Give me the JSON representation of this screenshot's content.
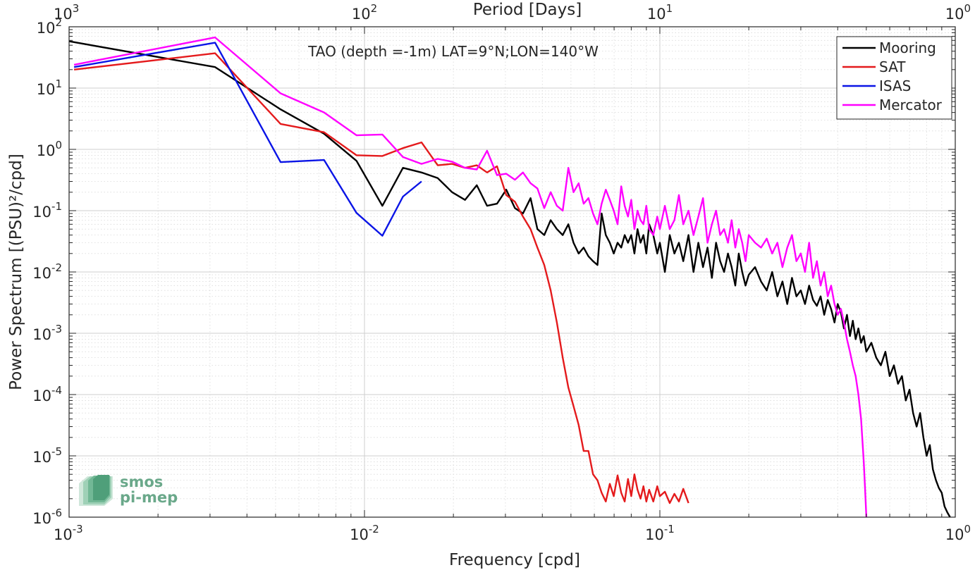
{
  "chart_data": {
    "type": "line",
    "title": "TAO (depth =-1m) LAT=9°N;LON=140°W",
    "xlabel": "Frequency [cpd]",
    "ylabel": "Power Spectrum [(PSU)²/cpd]",
    "x2label": "Period [Days]",
    "xscale": "log",
    "yscale": "log",
    "xlim": [
      0.001,
      1
    ],
    "ylim": [
      1e-06,
      100
    ],
    "grid": true,
    "legend_position": "top-right",
    "x_ticks": [
      {
        "value": 0.001,
        "base": "10",
        "exp": "-3"
      },
      {
        "value": 0.01,
        "base": "10",
        "exp": "-2"
      },
      {
        "value": 0.1,
        "base": "10",
        "exp": "-1"
      },
      {
        "value": 1,
        "base": "10",
        "exp": "0"
      }
    ],
    "x2_ticks": [
      {
        "value": 0.001,
        "base": "10",
        "exp": "3"
      },
      {
        "value": 0.01,
        "base": "10",
        "exp": "2"
      },
      {
        "value": 0.1,
        "base": "10",
        "exp": "1"
      },
      {
        "value": 1,
        "base": "10",
        "exp": "0"
      }
    ],
    "y_ticks": [
      {
        "value": 100,
        "base": "10",
        "exp": "2"
      },
      {
        "value": 10,
        "base": "10",
        "exp": "1"
      },
      {
        "value": 1,
        "base": "10",
        "exp": "0"
      },
      {
        "value": 0.1,
        "base": "10",
        "exp": "-1"
      },
      {
        "value": 0.01,
        "base": "10",
        "exp": "-2"
      },
      {
        "value": 0.001,
        "base": "10",
        "exp": "-3"
      },
      {
        "value": 0.0001,
        "base": "10",
        "exp": "-4"
      },
      {
        "value": 1e-05,
        "base": "10",
        "exp": "-5"
      },
      {
        "value": 1e-06,
        "base": "10",
        "exp": "-6"
      }
    ],
    "series": [
      {
        "name": "Mooring",
        "color": "#000000",
        "x": [
          0.001,
          0.00312,
          0.0052,
          0.0073,
          0.0094,
          0.0115,
          0.0135,
          0.0156,
          0.0177,
          0.0198,
          0.0219,
          0.024,
          0.026,
          0.0281,
          0.0302,
          0.0323,
          0.0344,
          0.0365,
          0.0385,
          0.0406,
          0.0427,
          0.0448,
          0.0469,
          0.049,
          0.051,
          0.0531,
          0.0552,
          0.0573,
          0.0594,
          0.0615,
          0.0635,
          0.0656,
          0.0677,
          0.0698,
          0.0719,
          0.074,
          0.076,
          0.078,
          0.08,
          0.082,
          0.084,
          0.086,
          0.088,
          0.09,
          0.092,
          0.095,
          0.098,
          0.1,
          0.104,
          0.108,
          0.112,
          0.116,
          0.12,
          0.125,
          0.13,
          0.135,
          0.14,
          0.145,
          0.15,
          0.155,
          0.16,
          0.165,
          0.17,
          0.175,
          0.18,
          0.185,
          0.19,
          0.195,
          0.2,
          0.21,
          0.22,
          0.23,
          0.24,
          0.25,
          0.26,
          0.27,
          0.28,
          0.29,
          0.3,
          0.31,
          0.32,
          0.33,
          0.34,
          0.35,
          0.36,
          0.37,
          0.38,
          0.39,
          0.4,
          0.41,
          0.42,
          0.43,
          0.44,
          0.45,
          0.46,
          0.47,
          0.48,
          0.49,
          0.5,
          0.52,
          0.54,
          0.56,
          0.58,
          0.6,
          0.62,
          0.64,
          0.66,
          0.68,
          0.7,
          0.72,
          0.74,
          0.76,
          0.78,
          0.8,
          0.82,
          0.84,
          0.86,
          0.88,
          0.9,
          0.92,
          0.94,
          0.96
        ],
        "values": [
          58,
          22,
          4.5,
          1.8,
          0.65,
          0.12,
          0.5,
          0.42,
          0.34,
          0.2,
          0.15,
          0.26,
          0.12,
          0.13,
          0.22,
          0.11,
          0.09,
          0.16,
          0.05,
          0.04,
          0.07,
          0.05,
          0.04,
          0.06,
          0.03,
          0.02,
          0.025,
          0.018,
          0.015,
          0.013,
          0.09,
          0.04,
          0.03,
          0.02,
          0.03,
          0.025,
          0.04,
          0.03,
          0.04,
          0.02,
          0.05,
          0.03,
          0.04,
          0.02,
          0.06,
          0.04,
          0.02,
          0.03,
          0.01,
          0.04,
          0.02,
          0.03,
          0.015,
          0.04,
          0.01,
          0.03,
          0.012,
          0.025,
          0.008,
          0.03,
          0.015,
          0.01,
          0.02,
          0.012,
          0.006,
          0.02,
          0.01,
          0.006,
          0.009,
          0.012,
          0.007,
          0.005,
          0.01,
          0.004,
          0.007,
          0.003,
          0.008,
          0.004,
          0.005,
          0.003,
          0.006,
          0.0035,
          0.0028,
          0.004,
          0.002,
          0.0035,
          0.0025,
          0.0015,
          0.003,
          0.0022,
          0.0012,
          0.002,
          0.0009,
          0.0016,
          0.0008,
          0.0012,
          0.0007,
          0.0009,
          0.0005,
          0.0007,
          0.0004,
          0.0003,
          0.0005,
          0.0002,
          0.0003,
          0.00015,
          0.0002,
          8e-05,
          0.00012,
          5e-05,
          3e-05,
          5e-05,
          2e-05,
          1e-05,
          1.5e-05,
          6e-06,
          4e-06,
          3e-06,
          2.5e-06,
          1.5e-06,
          1.2e-06,
          1e-06
        ]
      },
      {
        "name": "SAT",
        "color": "#e41a1c",
        "x": [
          0.00104,
          0.00312,
          0.0052,
          0.0073,
          0.0094,
          0.0115,
          0.0135,
          0.0156,
          0.0177,
          0.0198,
          0.0219,
          0.024,
          0.026,
          0.0281,
          0.0302,
          0.0323,
          0.0344,
          0.0365,
          0.0385,
          0.0406,
          0.0427,
          0.0448,
          0.0469,
          0.049,
          0.051,
          0.0531,
          0.0552,
          0.0573,
          0.0594,
          0.0615,
          0.0635,
          0.0656,
          0.0677,
          0.0698,
          0.0719,
          0.074,
          0.076,
          0.078,
          0.08,
          0.082,
          0.084,
          0.086,
          0.088,
          0.09,
          0.092,
          0.095,
          0.098,
          0.1,
          0.104,
          0.108,
          0.112,
          0.116,
          0.12,
          0.125
        ],
        "values": [
          20,
          37,
          2.6,
          1.9,
          0.8,
          0.78,
          1.05,
          1.3,
          0.55,
          0.58,
          0.5,
          0.55,
          0.42,
          0.53,
          0.18,
          0.14,
          0.08,
          0.05,
          0.025,
          0.013,
          0.005,
          0.0015,
          0.0004,
          0.00013,
          6.5e-05,
          3.2e-05,
          1.2e-05,
          1.2e-05,
          5e-06,
          4e-06,
          2.5e-06,
          1.8e-06,
          3.5e-06,
          2.2e-06,
          4.8e-06,
          2.5e-06,
          1.8e-06,
          4.2e-06,
          2.2e-06,
          5e-06,
          2.8e-06,
          2e-06,
          3.2e-06,
          1.8e-06,
          2.8e-06,
          1.8e-06,
          3.2e-06,
          2.2e-06,
          2.6e-06,
          1.7e-06,
          2.4e-06,
          1.8e-06,
          2.9e-06,
          1.7e-06
        ]
      },
      {
        "name": "ISAS",
        "color": "#0a14e6",
        "x": [
          0.00104,
          0.00312,
          0.0052,
          0.0073,
          0.0094,
          0.0115,
          0.0135,
          0.0156
        ],
        "values": [
          22,
          55,
          0.62,
          0.67,
          0.092,
          0.039,
          0.17,
          0.3
        ]
      },
      {
        "name": "Mercator",
        "color": "#ff00ff",
        "x": [
          0.00104,
          0.00312,
          0.0052,
          0.0073,
          0.0094,
          0.0115,
          0.0135,
          0.0156,
          0.0177,
          0.0198,
          0.0219,
          0.024,
          0.026,
          0.0281,
          0.0302,
          0.0323,
          0.0344,
          0.0365,
          0.0385,
          0.0406,
          0.0427,
          0.0448,
          0.0469,
          0.049,
          0.051,
          0.0531,
          0.0552,
          0.0573,
          0.0594,
          0.0615,
          0.0635,
          0.0656,
          0.0677,
          0.0698,
          0.0719,
          0.074,
          0.076,
          0.078,
          0.08,
          0.082,
          0.084,
          0.086,
          0.088,
          0.09,
          0.092,
          0.095,
          0.098,
          0.1,
          0.104,
          0.108,
          0.112,
          0.116,
          0.12,
          0.125,
          0.13,
          0.135,
          0.14,
          0.145,
          0.15,
          0.155,
          0.16,
          0.165,
          0.17,
          0.175,
          0.18,
          0.185,
          0.19,
          0.195,
          0.2,
          0.21,
          0.22,
          0.23,
          0.24,
          0.25,
          0.26,
          0.27,
          0.28,
          0.29,
          0.3,
          0.31,
          0.32,
          0.33,
          0.34,
          0.35,
          0.36,
          0.37,
          0.38,
          0.39,
          0.4,
          0.41,
          0.42,
          0.43,
          0.44,
          0.45,
          0.46,
          0.47,
          0.48,
          0.49,
          0.495,
          0.5
        ],
        "values": [
          24,
          67,
          8.2,
          4.0,
          1.7,
          1.75,
          0.75,
          0.58,
          0.7,
          0.63,
          0.5,
          0.47,
          0.95,
          0.38,
          0.4,
          0.32,
          0.42,
          0.28,
          0.23,
          0.11,
          0.2,
          0.12,
          0.1,
          0.5,
          0.2,
          0.28,
          0.13,
          0.16,
          0.09,
          0.06,
          0.13,
          0.22,
          0.15,
          0.1,
          0.06,
          0.25,
          0.12,
          0.08,
          0.15,
          0.05,
          0.1,
          0.07,
          0.06,
          0.12,
          0.05,
          0.04,
          0.08,
          0.05,
          0.12,
          0.05,
          0.07,
          0.18,
          0.06,
          0.1,
          0.04,
          0.08,
          0.16,
          0.03,
          0.06,
          0.1,
          0.04,
          0.05,
          0.03,
          0.07,
          0.025,
          0.05,
          0.03,
          0.015,
          0.04,
          0.03,
          0.025,
          0.035,
          0.02,
          0.03,
          0.012,
          0.025,
          0.04,
          0.015,
          0.02,
          0.01,
          0.03,
          0.008,
          0.015,
          0.006,
          0.01,
          0.004,
          0.006,
          0.003,
          0.002,
          0.0025,
          0.0015,
          0.0008,
          0.0005,
          0.0003,
          0.0002,
          0.0001,
          4e-05,
          8e-06,
          3e-06,
          1e-06
        ]
      }
    ]
  },
  "logo": {
    "line1": "smos",
    "line2": "pi-mep"
  }
}
